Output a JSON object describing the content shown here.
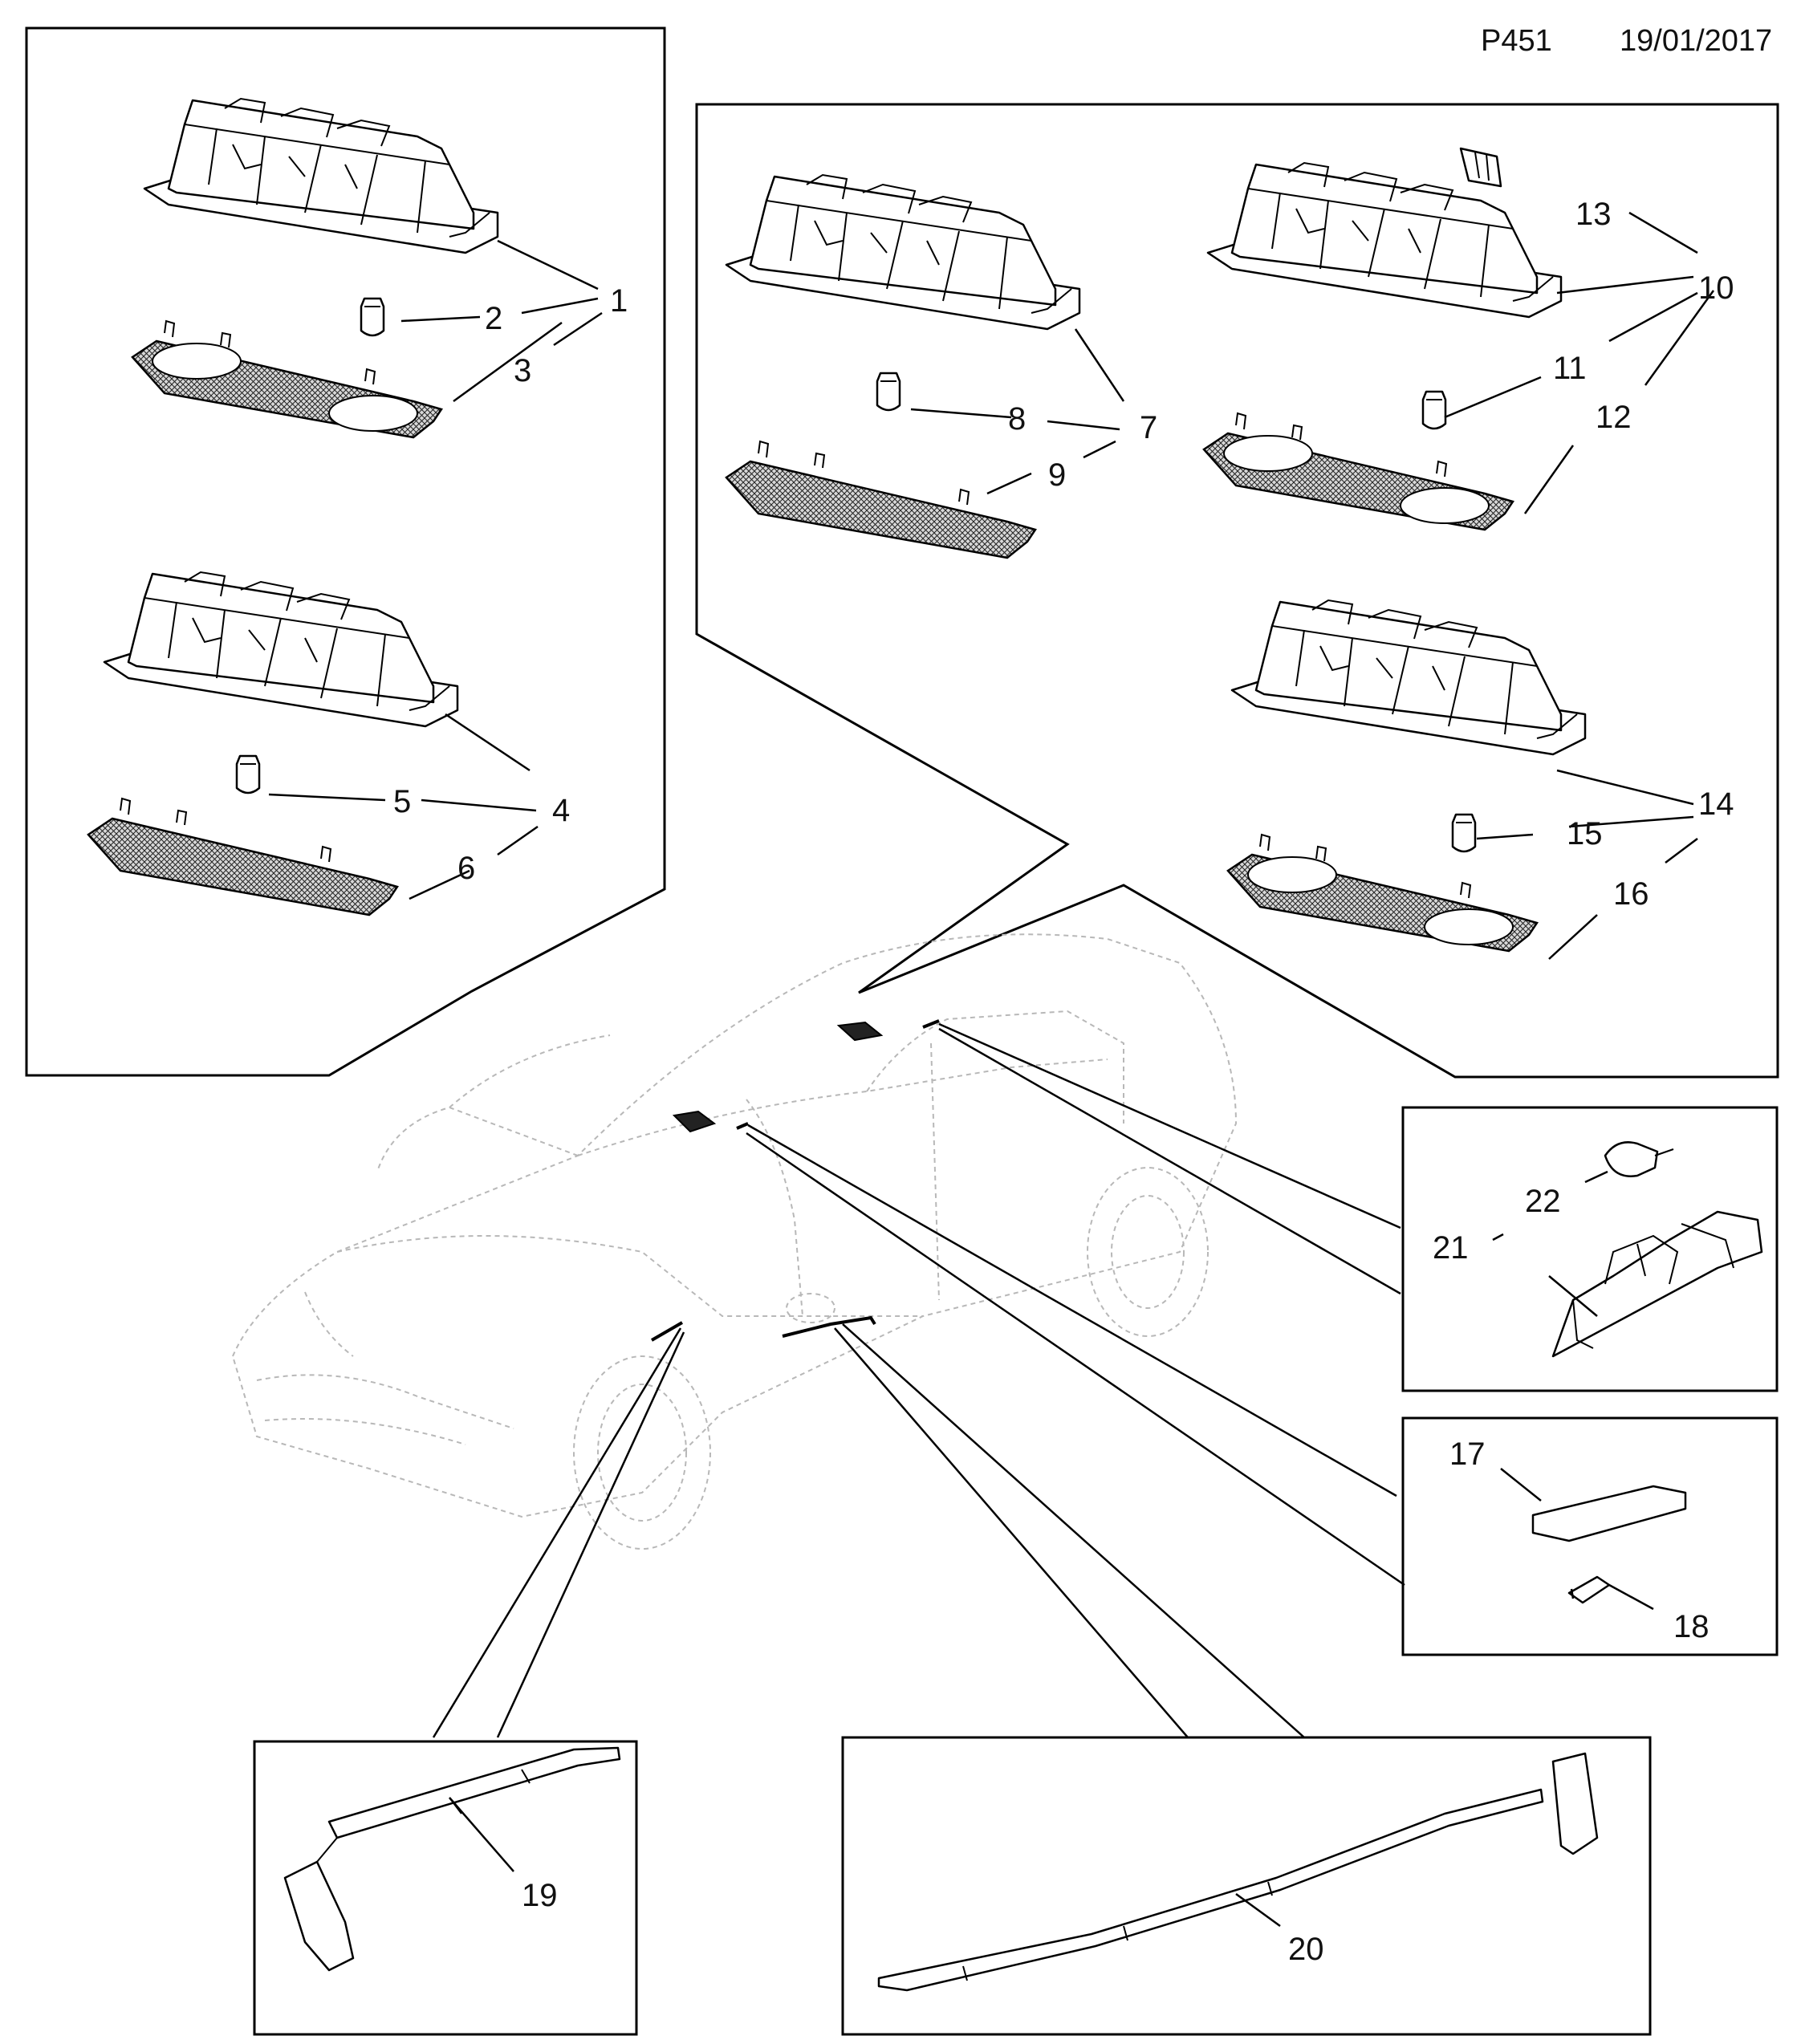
{
  "header": {
    "page_code": "P451",
    "date": "19/01/2017"
  },
  "callouts": [
    "1",
    "2",
    "3",
    "4",
    "5",
    "6",
    "7",
    "8",
    "9",
    "10",
    "11",
    "12",
    "13",
    "14",
    "15",
    "16",
    "17",
    "18",
    "19",
    "20",
    "21",
    "22"
  ],
  "colors": {
    "line": "#000000",
    "background": "#ffffff",
    "vehicle_outline": "#b8b8b8"
  }
}
